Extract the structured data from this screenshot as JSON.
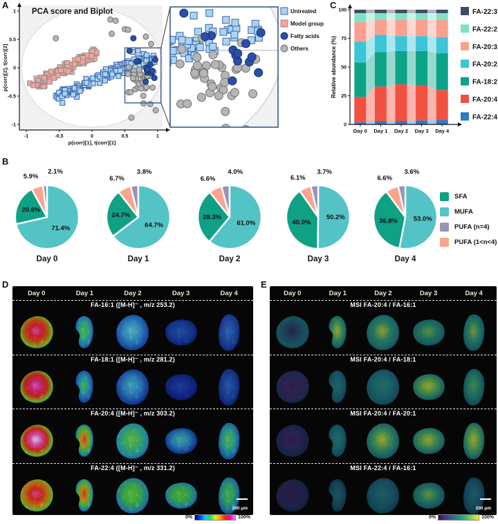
{
  "panel_a": {
    "label": "A"
  },
  "panel_b": {
    "label": "B",
    "legend": [
      {
        "label": "SFA",
        "color": "#10a185"
      },
      {
        "label": "MUFA",
        "color": "#54c3c6"
      },
      {
        "label": "PUFA (n=4)",
        "color": "#9793b8"
      },
      {
        "label": "PUFA (1<n<4)",
        "color": "#fca48e"
      }
    ]
  },
  "panel_c": {
    "label": "C"
  },
  "panel_d": {
    "label": "D",
    "days": [
      "Day 0",
      "Day 1",
      "Day 2",
      "Day 3",
      "Day 4"
    ],
    "scalebar": "200 μm",
    "colorbar": {
      "min": "0%",
      "max": "100%",
      "stops": [
        "#000090",
        "#0040ff",
        "#00d0ff",
        "#10e060",
        "#d8f020",
        "#ffa000",
        "#ff2000",
        "#ff00b0",
        "#ff88dc"
      ]
    },
    "rows": [
      {
        "title": "FA-16:1 ([M-H]⁻ , m/z 253.2)",
        "cells": [
          [
            "#ff5ad2",
            "#f03038",
            "#e85a20",
            "#86dc2e",
            "#2254d8"
          ],
          [
            "#62e04e",
            "#40c8a0",
            "#2f8ce0",
            "#1a44b4"
          ],
          [
            "#70d8ea",
            "#3fa8e8",
            "#2a68d0",
            "#1636a4"
          ],
          [
            "#3064cc",
            "#2347b0",
            "#142a84"
          ],
          [
            "#3b80d6",
            "#2b55bc",
            "#163398"
          ]
        ]
      },
      {
        "title": "FA-18:1 ([M-H]⁻ , m/z 281.2)",
        "cells": [
          [
            "#ff62e0",
            "#f0307c",
            "#ea3424",
            "#84da30",
            "#2254d6"
          ],
          [
            "#55df50",
            "#38b4d0",
            "#2a68d4",
            "#1636a4"
          ],
          [
            "#58c8e4",
            "#3898dc",
            "#2454c0",
            "#14329c"
          ],
          [
            "#2b50bc",
            "#1f38a4",
            "#11237c"
          ],
          [
            "#3472cc",
            "#264cb0",
            "#132c90"
          ]
        ]
      },
      {
        "title": "FA-20:4 ([M-H]⁻ , m/z 303.2)",
        "cells": [
          [
            "#ffffff",
            "#ff54c8",
            "#f03628",
            "#8cdc2e",
            "#2154d4"
          ],
          [
            "#f05230",
            "#e8a428",
            "#5ad846",
            "#289cc8",
            "#1d4cb4"
          ],
          [
            "#7ee05a",
            "#48cc7c",
            "#32a8cc",
            "#1d53ba"
          ],
          [
            "#54c8b6",
            "#349cd4",
            "#2256ba",
            "#16379a"
          ],
          [
            "#68da66",
            "#3cc09e",
            "#2780ca",
            "#1a42aa"
          ]
        ]
      },
      {
        "title": "FA-22:4 ([M-H]⁻ , m/z 331.2)",
        "cells": [
          [
            "#ff50b8",
            "#f23c24",
            "#ee7e22",
            "#80d834",
            "#2254cc"
          ],
          [
            "#ef4c30",
            "#eea026",
            "#62d844",
            "#2b9cc8",
            "#1d4ab2"
          ],
          [
            "#6ee050",
            "#4ccc52",
            "#2f9ac0",
            "#1d4eb2"
          ],
          [
            "#62da4e",
            "#44c858",
            "#2f9ac0",
            "#1d4eb2"
          ],
          [
            "#5ad45e",
            "#3cc07e",
            "#2886c2",
            "#1a42a6"
          ]
        ]
      }
    ]
  },
  "panel_e": {
    "label": "E",
    "days": [
      "Day 0",
      "Day 1",
      "Day 2",
      "Day 3",
      "Day 4"
    ],
    "scalebar": "200 μm",
    "colorbar": {
      "min": "0%",
      "max": "100%",
      "stops": [
        "#440154",
        "#46327e",
        "#365c8d",
        "#277f8e",
        "#1fa187",
        "#4ac16d",
        "#a0da39",
        "#fde725"
      ]
    },
    "rows": [
      {
        "title": "MSI  FA-20:4 / FA-16:1",
        "cells": [
          [
            "#3c3068",
            "#2f5e7a",
            "#2a7880",
            "#224252"
          ],
          [
            "#e2e242",
            "#54bc6e",
            "#2a8e8c",
            "#225c70"
          ],
          [
            "#cade42",
            "#3ea87e",
            "#288a8c",
            "#21546a"
          ],
          [
            "#80ca52",
            "#36a07e",
            "#27848a",
            "#21586c"
          ],
          [
            "#accc48",
            "#3aa480",
            "#27828a",
            "#21566a"
          ]
        ]
      },
      {
        "title": "MSI  FA-20:4 / FA-18:1",
        "cells": [
          [
            "#4a2a6c",
            "#433070",
            "#303866",
            "#232c4e"
          ],
          [
            "#2f8e8c",
            "#28768a",
            "#21546a"
          ],
          [
            "#36988a",
            "#2a8089",
            "#22566c"
          ],
          [
            "#dce23e",
            "#64c062",
            "#2f9284",
            "#225870"
          ],
          [
            "#5abc6e",
            "#2f9086",
            "#22566c"
          ]
        ]
      },
      {
        "title": "MSI  FA-20:4 / FA-20:1",
        "cells": [
          [
            "#482968",
            "#3c2f70",
            "#2a3260",
            "#1f2846"
          ],
          [
            "#33948a",
            "#297e8a",
            "#215268"
          ],
          [
            "#e2e440",
            "#54b872",
            "#2b8c8a",
            "#21586c"
          ],
          [
            "#d2de40",
            "#5ebc66",
            "#309088",
            "#225a6e"
          ],
          [
            "#dee23e",
            "#68c260",
            "#329288",
            "#225a6e"
          ]
        ]
      },
      {
        "title": "MSI  FA-22:4 / FA-16:1",
        "cells": [
          [
            "#45265e",
            "#3a2c68",
            "#282e56",
            "#1d2440"
          ],
          [
            "#2a7a86",
            "#255c74",
            "#1e4056"
          ],
          [
            "#2e8488",
            "#276c80",
            "#204860"
          ],
          [
            "#8eca52",
            "#3a9e7e",
            "#297c86",
            "#215068"
          ],
          [
            "#2c7e86",
            "#266680",
            "#1f465c"
          ]
        ]
      }
    ]
  },
  "chart_data": [
    {
      "id": "pca_biplot",
      "type": "scatter",
      "title": "PCA score and Biplot",
      "xlabel": "p(corr)[1], t(corr)[1]",
      "ylabel": "p(corr)[2], t(corr)[2]",
      "xlim": [
        -1.1,
        1.12
      ],
      "ylim": [
        -1.1,
        1.12
      ],
      "x_ticks": [
        -1,
        -0.5,
        0,
        0.5,
        1
      ],
      "y_ticks": [
        -1,
        -0.5,
        0,
        0.5,
        1
      ],
      "legend_position": "right of inset",
      "inset_region": {
        "x0": 0.5,
        "y0": -0.62,
        "x1": 1.05,
        "y1": 0.35
      },
      "seed": 7,
      "groups": [
        {
          "name": "Untreated",
          "marker": "square",
          "fill": "#a9d5f3",
          "edge": "#3c64a8",
          "z": 2,
          "cluster": {
            "kind": "band",
            "cx": 0.2,
            "cy": -0.16,
            "angle_deg": 26,
            "length": 1.65,
            "width": 0.15,
            "n": 150
          },
          "extra": [
            [
              0.62,
              0.28
            ],
            [
              0.7,
              0.3
            ],
            [
              -0.45,
              -0.62
            ]
          ]
        },
        {
          "name": "Model group",
          "marker": "square",
          "fill": "#f8a29b",
          "edge": "#8f8f8f",
          "z": 1,
          "cluster": {
            "kind": "band",
            "cx": -0.42,
            "cy": -0.03,
            "angle_deg": 33,
            "length": 1.15,
            "width": 0.12,
            "n": 115
          },
          "extra": []
        },
        {
          "name": "Fatty acids",
          "marker": "circle",
          "fill": "#2b4fa8",
          "edge": "#16306e",
          "z": 4,
          "cluster": {
            "kind": "blob",
            "cx": 0.8,
            "cy": 0.0,
            "sx": 0.18,
            "sy": 0.25,
            "n": 11
          },
          "extra": [
            [
              0.57,
              0.3
            ],
            [
              0.63,
              0.52
            ],
            [
              0.95,
              -0.18
            ]
          ]
        },
        {
          "name": "Others",
          "marker": "circle",
          "fill": "#b5b5b5",
          "edge": "#707070",
          "z": 3,
          "cluster": {
            "kind": "blob",
            "cx": 0.74,
            "cy": -0.18,
            "sx": 0.26,
            "sy": 0.42,
            "n": 38
          },
          "extra": [
            [
              -0.55,
              0.52
            ],
            [
              0.28,
              0.85
            ],
            [
              0.36,
              0.83
            ],
            [
              0.5,
              0.68
            ],
            [
              0.55,
              0.67
            ],
            [
              0.82,
              0.55
            ],
            [
              0.9,
              0.42
            ],
            [
              0.3,
              0.6
            ],
            [
              0.97,
              -0.75
            ],
            [
              0.6,
              -0.88
            ]
          ]
        }
      ]
    },
    {
      "id": "fatty_acid_class_pies",
      "type": "pie",
      "days": [
        "Day 0",
        "Day 1",
        "Day 2",
        "Day 3",
        "Day 4"
      ],
      "slices": [
        {
          "name": "MUFA",
          "color": "#54c3c6"
        },
        {
          "name": "SFA",
          "color": "#10a185"
        },
        {
          "name": "PUFA (1<n<4)",
          "color": "#fca48e"
        },
        {
          "name": "PUFA (n=4)",
          "color": "#9793b8"
        }
      ],
      "values": [
        [
          71.4,
          20.6,
          5.9,
          2.1
        ],
        [
          64.7,
          24.7,
          6.7,
          3.8
        ],
        [
          61.0,
          28.3,
          6.6,
          4.0
        ],
        [
          50.2,
          40.0,
          6.1,
          3.7
        ],
        [
          53.0,
          36.8,
          6.6,
          3.6
        ]
      ],
      "start_angle": "top",
      "direction": "clockwise"
    },
    {
      "id": "relative_abundance",
      "type": "bar",
      "stacked": true,
      "ylabel": "Relative abundance (%)",
      "ylim": [
        0,
        100
      ],
      "yticks": [
        0,
        25,
        50,
        75,
        100
      ],
      "categories": [
        "Day 0",
        "Day 1",
        "Day 2",
        "Day 3",
        "Day 4"
      ],
      "series": [
        {
          "name": "FA-22:4",
          "color": "#2a7cc4",
          "values": [
            2,
            3,
            3,
            3.5,
            4
          ]
        },
        {
          "name": "FA-20:4",
          "color": "#f35140",
          "values": [
            22,
            30,
            32,
            30.5,
            26
          ]
        },
        {
          "name": "FA-18:2",
          "color": "#0ba487",
          "values": [
            30,
            30,
            29,
            30,
            32
          ]
        },
        {
          "name": "FA-20:2",
          "color": "#3bc5d6",
          "values": [
            18,
            15,
            13,
            13,
            14
          ]
        },
        {
          "name": "FA-20:3",
          "color": "#fb9f8e",
          "values": [
            17,
            13,
            14,
            14,
            15
          ]
        },
        {
          "name": "FA-22:2",
          "color": "#7fe2c4",
          "values": [
            8,
            6,
            6,
            6,
            6
          ]
        },
        {
          "name": "FA-22:3",
          "color": "#3d4e66",
          "values": [
            3,
            3,
            3,
            3,
            3
          ]
        }
      ],
      "legend_order": "reversed (FA-22:3 on top)",
      "legend_position": "right"
    }
  ]
}
